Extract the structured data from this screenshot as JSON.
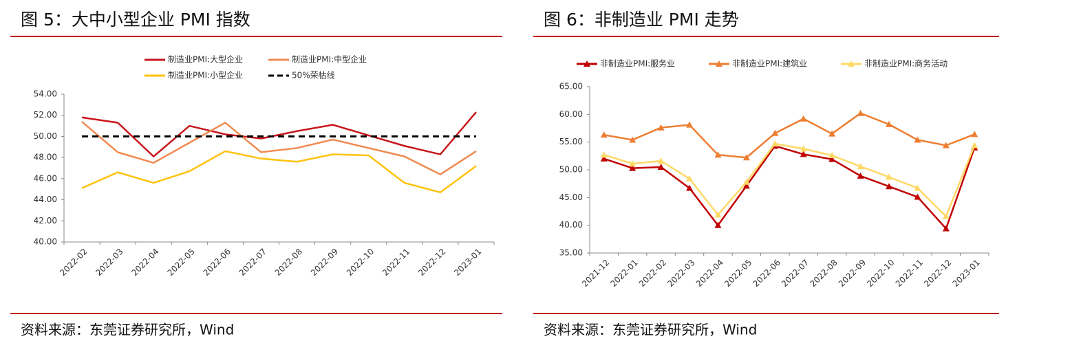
{
  "chart_data": [
    {
      "type": "line",
      "title": "图 5：大中小型企业 PMI 指数",
      "source": "资料来源：东莞证券研究所，Wind",
      "categories": [
        "2022-02",
        "2022-03",
        "2022-04",
        "2022-05",
        "2022-06",
        "2022-07",
        "2022-08",
        "2022-09",
        "2022-10",
        "2022-11",
        "2022-12",
        "2023-01"
      ],
      "series": [
        {
          "name": "制造业PMI:大型企业",
          "color": "#c8161d",
          "values": [
            51.8,
            51.3,
            48.1,
            51.0,
            50.2,
            49.8,
            50.5,
            51.1,
            50.1,
            49.1,
            48.3,
            52.3
          ]
        },
        {
          "name": "制造业PMI:中型企业",
          "color": "#f08a50",
          "values": [
            51.4,
            48.5,
            47.5,
            49.4,
            51.3,
            48.5,
            48.9,
            49.7,
            48.9,
            48.1,
            46.4,
            48.6
          ]
        },
        {
          "name": "制造业PMI:小型企业",
          "color": "#ffc20e",
          "values": [
            45.1,
            46.6,
            45.6,
            46.7,
            48.6,
            47.9,
            47.6,
            48.3,
            48.2,
            45.6,
            44.7,
            47.2
          ]
        },
        {
          "name": "50%荣枯线",
          "color": "#000000",
          "style": "dashed",
          "values": [
            50,
            50,
            50,
            50,
            50,
            50,
            50,
            50,
            50,
            50,
            50,
            50
          ]
        }
      ],
      "ylim": [
        40,
        54
      ],
      "yticks": [
        {
          "value": 40,
          "label": "40.00"
        },
        {
          "value": 42,
          "label": "42.00"
        },
        {
          "value": 44,
          "label": "44.00"
        },
        {
          "value": 46,
          "label": "46.00"
        },
        {
          "value": 48,
          "label": "48.00"
        },
        {
          "value": 50,
          "label": "50.00"
        },
        {
          "value": 52,
          "label": "52.00"
        },
        {
          "value": 54,
          "label": "54.00"
        }
      ],
      "grid": false
    },
    {
      "type": "line",
      "title": "图 6：非制造业 PMI 走势",
      "source": "资料来源：东莞证券研究所，Wind",
      "categories": [
        "2021-12",
        "2022-01",
        "2022-02",
        "2022-03",
        "2022-04",
        "2022-05",
        "2022-06",
        "2022-07",
        "2022-08",
        "2022-09",
        "2022-10",
        "2022-11",
        "2022-12",
        "2023-01"
      ],
      "series": [
        {
          "name": "非制造业PMI:服务业",
          "color": "#c00000",
          "marker": "triangle",
          "values": [
            52.0,
            50.3,
            50.5,
            46.7,
            40.0,
            47.1,
            54.3,
            52.8,
            51.9,
            48.9,
            47.0,
            45.1,
            39.4,
            54.0
          ]
        },
        {
          "name": "非制造业PMI:建筑业",
          "color": "#ed7d31",
          "marker": "triangle",
          "values": [
            56.3,
            55.4,
            57.6,
            58.1,
            52.7,
            52.2,
            56.6,
            59.2,
            56.5,
            60.2,
            58.2,
            55.4,
            54.4,
            56.4
          ]
        },
        {
          "name": "非制造业PMI:商务活动",
          "color": "#ffd966",
          "marker": "triangle",
          "values": [
            52.7,
            51.1,
            51.6,
            48.4,
            41.9,
            47.8,
            54.7,
            53.8,
            52.6,
            50.6,
            48.7,
            46.7,
            41.6,
            54.4
          ]
        }
      ],
      "ylim": [
        35,
        65
      ],
      "yticks": [
        {
          "value": 35,
          "label": "35.00"
        },
        {
          "value": 40,
          "label": "40.00"
        },
        {
          "value": 45,
          "label": "45.00"
        },
        {
          "value": 50,
          "label": "50.00"
        },
        {
          "value": 55,
          "label": "55.00"
        },
        {
          "value": 60,
          "label": "60.00"
        },
        {
          "value": 65,
          "label": "65.00"
        }
      ],
      "grid": false
    }
  ]
}
